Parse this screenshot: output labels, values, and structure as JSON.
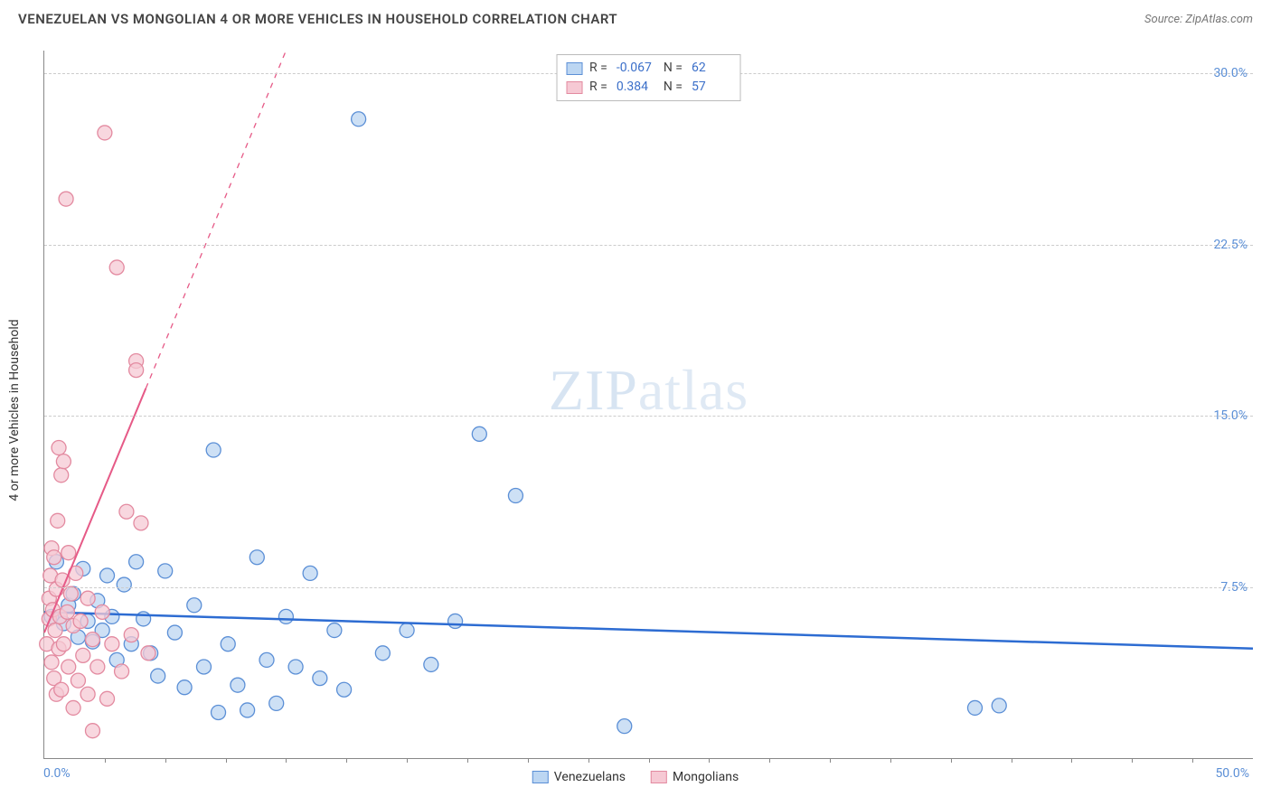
{
  "header": {
    "title": "VENEZUELAN VS MONGOLIAN 4 OR MORE VEHICLES IN HOUSEHOLD CORRELATION CHART",
    "source_label": "Source: ZipAtlas.com"
  },
  "watermark": {
    "part1": "ZIP",
    "part2": "atlas"
  },
  "chart": {
    "type": "scatter",
    "background_color": "#ffffff",
    "grid_color": "#cccccc",
    "axis_color": "#888888",
    "xlim": [
      0,
      50
    ],
    "ylim": [
      0,
      31
    ],
    "x_tick_min_label": "0.0%",
    "x_tick_max_label": "50.0%",
    "x_minor_step": 2.5,
    "y_gridlines": [
      7.5,
      15.0,
      22.5,
      30.0
    ],
    "y_tick_labels": [
      "7.5%",
      "15.0%",
      "22.5%",
      "30.0%"
    ],
    "y_axis_label": "4 or more Vehicles in Household",
    "y_tick_color": "#5b8fd6",
    "label_fontsize": 14,
    "title_fontsize": 15,
    "series": [
      {
        "name": "Venezuelans",
        "marker_fill": "#bcd6f2",
        "marker_stroke": "#5b8fd6",
        "marker_radius": 8,
        "trend_color": "#2d6cd2",
        "trend_width": 2.5,
        "trend": {
          "x1": 0,
          "y1": 6.4,
          "x2": 50,
          "y2": 4.8
        },
        "stats": {
          "R": "-0.067",
          "N": "62"
        },
        "points": [
          [
            0.3,
            6.2
          ],
          [
            0.5,
            8.6
          ],
          [
            0.8,
            5.9
          ],
          [
            1.0,
            6.7
          ],
          [
            1.2,
            7.2
          ],
          [
            1.4,
            5.3
          ],
          [
            1.6,
            8.3
          ],
          [
            1.8,
            6.0
          ],
          [
            2.0,
            5.1
          ],
          [
            2.2,
            6.9
          ],
          [
            2.4,
            5.6
          ],
          [
            2.6,
            8.0
          ],
          [
            2.8,
            6.2
          ],
          [
            3.0,
            4.3
          ],
          [
            3.3,
            7.6
          ],
          [
            3.6,
            5.0
          ],
          [
            3.8,
            8.6
          ],
          [
            4.1,
            6.1
          ],
          [
            4.4,
            4.6
          ],
          [
            4.7,
            3.6
          ],
          [
            5.0,
            8.2
          ],
          [
            5.4,
            5.5
          ],
          [
            5.8,
            3.1
          ],
          [
            6.2,
            6.7
          ],
          [
            6.6,
            4.0
          ],
          [
            7.0,
            13.5
          ],
          [
            7.2,
            2.0
          ],
          [
            7.6,
            5.0
          ],
          [
            8.0,
            3.2
          ],
          [
            8.4,
            2.1
          ],
          [
            8.8,
            8.8
          ],
          [
            9.2,
            4.3
          ],
          [
            9.6,
            2.4
          ],
          [
            10.0,
            6.2
          ],
          [
            10.4,
            4.0
          ],
          [
            11.0,
            8.1
          ],
          [
            11.4,
            3.5
          ],
          [
            12.0,
            5.6
          ],
          [
            12.4,
            3.0
          ],
          [
            13.0,
            28.0
          ],
          [
            14.0,
            4.6
          ],
          [
            15.0,
            5.6
          ],
          [
            16.0,
            4.1
          ],
          [
            17.0,
            6.0
          ],
          [
            18.0,
            14.2
          ],
          [
            19.5,
            11.5
          ],
          [
            24.0,
            1.4
          ],
          [
            38.5,
            2.2
          ],
          [
            39.5,
            2.3
          ]
        ]
      },
      {
        "name": "Mongolians",
        "marker_fill": "#f6c9d4",
        "marker_stroke": "#e38aa0",
        "marker_radius": 8,
        "trend_color": "#e65a87",
        "trend_width": 2,
        "trend": {
          "x1": 0,
          "y1": 5.5,
          "x2": 4.2,
          "y2": 16.2
        },
        "trend_dashed_ext": {
          "x1": 4.2,
          "y1": 16.2,
          "x2": 10.0,
          "y2": 31.0
        },
        "stats": {
          "R": "0.384",
          "N": "57"
        },
        "points": [
          [
            0.1,
            5.0
          ],
          [
            0.2,
            6.1
          ],
          [
            0.2,
            7.0
          ],
          [
            0.25,
            8.0
          ],
          [
            0.3,
            4.2
          ],
          [
            0.3,
            9.2
          ],
          [
            0.35,
            6.5
          ],
          [
            0.4,
            3.5
          ],
          [
            0.4,
            8.8
          ],
          [
            0.45,
            5.6
          ],
          [
            0.5,
            2.8
          ],
          [
            0.5,
            7.4
          ],
          [
            0.55,
            10.4
          ],
          [
            0.6,
            4.8
          ],
          [
            0.6,
            13.6
          ],
          [
            0.65,
            6.2
          ],
          [
            0.7,
            3.0
          ],
          [
            0.7,
            12.4
          ],
          [
            0.75,
            7.8
          ],
          [
            0.8,
            5.0
          ],
          [
            0.8,
            13.0
          ],
          [
            0.9,
            24.5
          ],
          [
            0.95,
            6.4
          ],
          [
            1.0,
            4.0
          ],
          [
            1.0,
            9.0
          ],
          [
            1.1,
            7.2
          ],
          [
            1.2,
            2.2
          ],
          [
            1.2,
            5.8
          ],
          [
            1.3,
            8.1
          ],
          [
            1.4,
            3.4
          ],
          [
            1.5,
            6.0
          ],
          [
            1.6,
            4.5
          ],
          [
            1.8,
            2.8
          ],
          [
            1.8,
            7.0
          ],
          [
            2.0,
            1.2
          ],
          [
            2.0,
            5.2
          ],
          [
            2.2,
            4.0
          ],
          [
            2.4,
            6.4
          ],
          [
            2.5,
            27.4
          ],
          [
            2.6,
            2.6
          ],
          [
            2.8,
            5.0
          ],
          [
            3.0,
            21.5
          ],
          [
            3.2,
            3.8
          ],
          [
            3.4,
            10.8
          ],
          [
            3.6,
            5.4
          ],
          [
            3.8,
            17.4
          ],
          [
            3.8,
            17.0
          ],
          [
            4.0,
            10.3
          ],
          [
            4.3,
            4.6
          ]
        ]
      }
    ]
  },
  "legend_top": {
    "r_label": "R =",
    "n_label": "N ="
  },
  "legend_bottom": {
    "items": [
      "Venezuelans",
      "Mongolians"
    ]
  }
}
